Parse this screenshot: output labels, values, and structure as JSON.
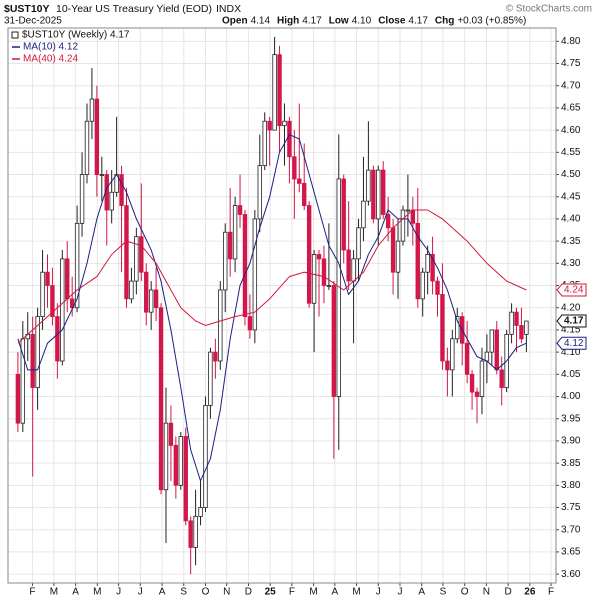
{
  "chart_data": {
    "type": "candlestick",
    "title": "$UST10Y",
    "subtitle": "10-Year US Treasury Yield (EOD)",
    "exchange": "INDX",
    "date": "31-Dec-2025",
    "watermark": "© StockCharts.com",
    "quote": [
      {
        "label": "Open",
        "value": "4.14"
      },
      {
        "label": "High",
        "value": "4.17"
      },
      {
        "label": "Low",
        "value": "4.10"
      },
      {
        "label": "Close",
        "value": "4.17"
      },
      {
        "label": "Chg",
        "value": "+0.03 (+0.85%)"
      }
    ],
    "price_legend": "$UST10Y (Weekly) 4.17",
    "up_color": "#ffffff",
    "down_color": "#d2174a",
    "open": [
      4.05,
      3.94,
      4.13,
      4.14,
      4.02,
      4.18,
      4.28,
      4.25,
      4.18,
      4.08,
      4.31,
      4.22,
      4.2,
      4.39,
      4.5,
      4.62,
      4.67,
      4.5,
      4.5,
      4.42,
      4.46,
      4.5,
      4.43,
      4.22,
      4.26,
      4.36,
      4.28,
      4.19,
      4.24,
      4.2,
      3.79,
      3.94,
      3.89,
      3.8,
      3.91,
      3.72,
      3.66,
      3.73,
      3.75,
      3.98,
      4.1,
      4.08,
      4.24,
      4.37,
      4.31,
      4.43,
      4.41,
      4.18,
      4.15,
      4.4,
      4.52,
      4.62,
      4.6,
      4.77,
      4.61,
      4.62,
      4.54,
      4.49,
      4.48,
      4.43,
      4.21,
      4.32,
      4.31,
      4.25,
      4.25,
      4.0,
      4.49,
      4.33,
      4.26,
      4.31,
      4.38,
      4.44,
      4.51,
      4.4,
      4.51,
      4.41,
      4.38,
      4.28,
      4.35,
      4.42,
      4.42,
      4.39,
      4.22,
      4.28,
      4.32,
      4.26,
      4.23,
      4.08,
      4.06,
      4.13,
      4.18,
      4.12,
      4.05,
      4.01,
      4.0,
      4.08,
      4.1,
      4.15,
      4.06,
      4.02,
      4.14,
      4.19,
      4.16,
      4.14
    ],
    "high": [
      4.1,
      4.17,
      4.19,
      4.18,
      4.2,
      4.33,
      4.32,
      4.29,
      4.21,
      4.33,
      4.35,
      4.27,
      4.43,
      4.55,
      4.66,
      4.74,
      4.7,
      4.54,
      4.51,
      4.51,
      4.63,
      4.52,
      4.47,
      4.29,
      4.38,
      4.48,
      4.3,
      4.26,
      4.29,
      4.21,
      4.02,
      3.98,
      3.91,
      3.92,
      3.93,
      3.73,
      3.79,
      3.81,
      4.0,
      4.11,
      4.13,
      4.26,
      4.39,
      4.47,
      4.45,
      4.5,
      4.42,
      4.23,
      4.42,
      4.59,
      4.64,
      4.63,
      4.81,
      4.79,
      4.66,
      4.63,
      4.6,
      4.66,
      4.57,
      4.44,
      4.33,
      4.33,
      4.34,
      4.39,
      4.26,
      4.59,
      4.5,
      4.44,
      4.33,
      4.4,
      4.54,
      4.62,
      4.52,
      4.52,
      4.53,
      4.45,
      4.4,
      4.4,
      4.43,
      4.5,
      4.45,
      4.47,
      4.29,
      4.34,
      4.36,
      4.27,
      4.3,
      4.11,
      4.15,
      4.2,
      4.19,
      4.17,
      4.06,
      4.02,
      4.11,
      4.14,
      4.15,
      4.17,
      4.09,
      4.15,
      4.21,
      4.2,
      4.2,
      4.17
    ],
    "low": [
      3.92,
      3.92,
      4.08,
      3.82,
      3.97,
      4.15,
      4.2,
      4.16,
      4.04,
      4.07,
      4.19,
      4.18,
      4.19,
      4.36,
      4.48,
      4.58,
      4.45,
      4.44,
      4.34,
      4.39,
      4.45,
      4.28,
      4.2,
      4.21,
      4.23,
      4.26,
      4.16,
      4.15,
      4.17,
      3.78,
      3.67,
      3.81,
      3.77,
      3.79,
      3.71,
      3.6,
      3.62,
      3.71,
      3.74,
      3.95,
      4.04,
      4.06,
      4.19,
      4.27,
      4.28,
      4.38,
      4.16,
      4.13,
      4.12,
      4.37,
      4.51,
      4.52,
      4.6,
      4.55,
      4.52,
      4.48,
      4.4,
      4.46,
      4.42,
      4.2,
      4.1,
      4.18,
      4.21,
      4.24,
      3.86,
      3.88,
      4.3,
      4.24,
      4.12,
      4.26,
      4.35,
      4.43,
      4.39,
      4.34,
      4.4,
      4.35,
      4.23,
      4.22,
      4.34,
      4.36,
      4.34,
      4.2,
      4.18,
      4.23,
      4.23,
      4.18,
      4.06,
      4.0,
      4.0,
      4.12,
      4.07,
      4.03,
      3.97,
      3.94,
      3.96,
      4.03,
      4.07,
      4.05,
      3.98,
      4.01,
      4.12,
      4.1,
      4.12,
      4.1
    ],
    "close": [
      3.94,
      4.13,
      4.14,
      4.02,
      4.18,
      4.28,
      4.25,
      4.18,
      4.08,
      4.31,
      4.22,
      4.2,
      4.39,
      4.5,
      4.62,
      4.67,
      4.5,
      4.5,
      4.42,
      4.46,
      4.5,
      4.43,
      4.22,
      4.26,
      4.36,
      4.28,
      4.19,
      4.24,
      4.2,
      3.79,
      3.94,
      3.89,
      3.8,
      3.91,
      3.72,
      3.66,
      3.73,
      3.75,
      3.98,
      4.1,
      4.08,
      4.24,
      4.37,
      4.31,
      4.43,
      4.41,
      4.18,
      4.15,
      4.4,
      4.52,
      4.62,
      4.6,
      4.77,
      4.61,
      4.62,
      4.54,
      4.49,
      4.48,
      4.43,
      4.21,
      4.32,
      4.31,
      4.25,
      4.25,
      4.0,
      4.49,
      4.33,
      4.26,
      4.31,
      4.38,
      4.44,
      4.51,
      4.4,
      4.51,
      4.41,
      4.38,
      4.28,
      4.35,
      4.42,
      4.42,
      4.39,
      4.22,
      4.28,
      4.32,
      4.26,
      4.23,
      4.08,
      4.06,
      4.13,
      4.18,
      4.12,
      4.05,
      4.01,
      4.0,
      4.08,
      4.1,
      4.15,
      4.06,
      4.02,
      4.14,
      4.19,
      4.16,
      4.13,
      4.17
    ],
    "series": [
      {
        "name": "MA(10) 4.12",
        "color": "#1c1f80",
        "x": [
          0,
          2,
          4,
          6,
          9,
          12,
          14,
          16,
          18,
          20,
          22,
          24,
          27,
          29,
          31,
          33,
          35,
          37,
          39,
          41,
          43,
          45,
          47,
          49,
          51,
          53,
          55,
          57,
          59,
          61,
          63,
          65,
          67,
          69,
          71,
          73,
          75,
          77,
          79,
          81,
          83,
          85,
          87,
          89,
          91,
          93,
          95,
          97,
          99,
          101,
          103
        ],
        "values": [
          4.13,
          4.06,
          4.06,
          4.12,
          4.15,
          4.22,
          4.3,
          4.4,
          4.47,
          4.5,
          4.46,
          4.4,
          4.33,
          4.26,
          4.15,
          4.02,
          3.88,
          3.81,
          3.86,
          3.97,
          4.13,
          4.25,
          4.3,
          4.38,
          4.45,
          4.55,
          4.59,
          4.58,
          4.5,
          4.42,
          4.34,
          4.3,
          4.23,
          4.26,
          4.32,
          4.36,
          4.42,
          4.4,
          4.4,
          4.36,
          4.33,
          4.29,
          4.24,
          4.17,
          4.13,
          4.09,
          4.08,
          4.06,
          4.08,
          4.11,
          4.12
        ]
      },
      {
        "name": "MA(40) 4.24",
        "color": "#d2173c",
        "x": [
          0,
          4,
          8,
          12,
          16,
          19,
          22,
          25,
          28,
          31,
          33,
          36,
          38,
          41,
          44,
          48,
          51,
          55,
          58,
          62,
          66,
          70,
          73,
          76,
          78,
          80,
          83,
          86,
          89,
          91,
          95,
          99,
          103
        ],
        "values": [
          4.12,
          4.16,
          4.2,
          4.24,
          4.27,
          4.32,
          4.35,
          4.34,
          4.3,
          4.24,
          4.2,
          4.17,
          4.16,
          4.17,
          4.18,
          4.19,
          4.22,
          4.27,
          4.28,
          4.27,
          4.24,
          4.28,
          4.34,
          4.38,
          4.4,
          4.42,
          4.42,
          4.4,
          4.37,
          4.35,
          4.3,
          4.26,
          4.24
        ]
      }
    ],
    "xlim": [
      -2,
      109
    ],
    "xticks": [
      {
        "value": 2.95,
        "label": "F"
      },
      {
        "value": 7.3,
        "label": "M"
      },
      {
        "value": 11.7,
        "label": "A"
      },
      {
        "value": 16.1,
        "label": "M"
      },
      {
        "value": 20.4,
        "label": "J"
      },
      {
        "value": 24.8,
        "label": "J"
      },
      {
        "value": 29.2,
        "label": "A"
      },
      {
        "value": 33.6,
        "label": "S"
      },
      {
        "value": 38.0,
        "label": "O"
      },
      {
        "value": 42.3,
        "label": "N"
      },
      {
        "value": 46.7,
        "label": "D"
      },
      {
        "value": 51.1,
        "label": "25"
      },
      {
        "value": 55.5,
        "label": "F"
      },
      {
        "value": 59.9,
        "label": "M"
      },
      {
        "value": 64.2,
        "label": "A"
      },
      {
        "value": 68.6,
        "label": "M"
      },
      {
        "value": 73.0,
        "label": "J"
      },
      {
        "value": 77.4,
        "label": "J"
      },
      {
        "value": 81.8,
        "label": "A"
      },
      {
        "value": 86.1,
        "label": "S"
      },
      {
        "value": 90.5,
        "label": "O"
      },
      {
        "value": 94.9,
        "label": "N"
      },
      {
        "value": 99.3,
        "label": "D"
      },
      {
        "value": 103.7,
        "label": "26"
      },
      {
        "value": 108.0,
        "label": "F"
      }
    ],
    "ylim": [
      3.58,
      4.83
    ],
    "yticks": [
      {
        "value": 3.6,
        "label": "3.60"
      },
      {
        "value": 3.65,
        "label": "3.65"
      },
      {
        "value": 3.7,
        "label": "3.70"
      },
      {
        "value": 3.75,
        "label": "3.75"
      },
      {
        "value": 3.8,
        "label": "3.80"
      },
      {
        "value": 3.85,
        "label": "3.85"
      },
      {
        "value": 3.9,
        "label": "3.90"
      },
      {
        "value": 3.95,
        "label": "3.95"
      },
      {
        "value": 4.0,
        "label": "4.00"
      },
      {
        "value": 4.05,
        "label": "4.05"
      },
      {
        "value": 4.1,
        "label": "4.10"
      },
      {
        "value": 4.15,
        "label": "4.15"
      },
      {
        "value": 4.2,
        "label": "4.20"
      },
      {
        "value": 4.25,
        "label": "4.25"
      },
      {
        "value": 4.3,
        "label": "4.30"
      },
      {
        "value": 4.35,
        "label": "4.35"
      },
      {
        "value": 4.4,
        "label": "4.40"
      },
      {
        "value": 4.45,
        "label": "4.45"
      },
      {
        "value": 4.5,
        "label": "4.50"
      },
      {
        "value": 4.55,
        "label": "4.55"
      },
      {
        "value": 4.6,
        "label": "4.60"
      },
      {
        "value": 4.65,
        "label": "4.65"
      },
      {
        "value": 4.7,
        "label": "4.70"
      },
      {
        "value": 4.75,
        "label": "4.75"
      },
      {
        "value": 4.8,
        "label": "4.80"
      }
    ],
    "grid": true
  }
}
